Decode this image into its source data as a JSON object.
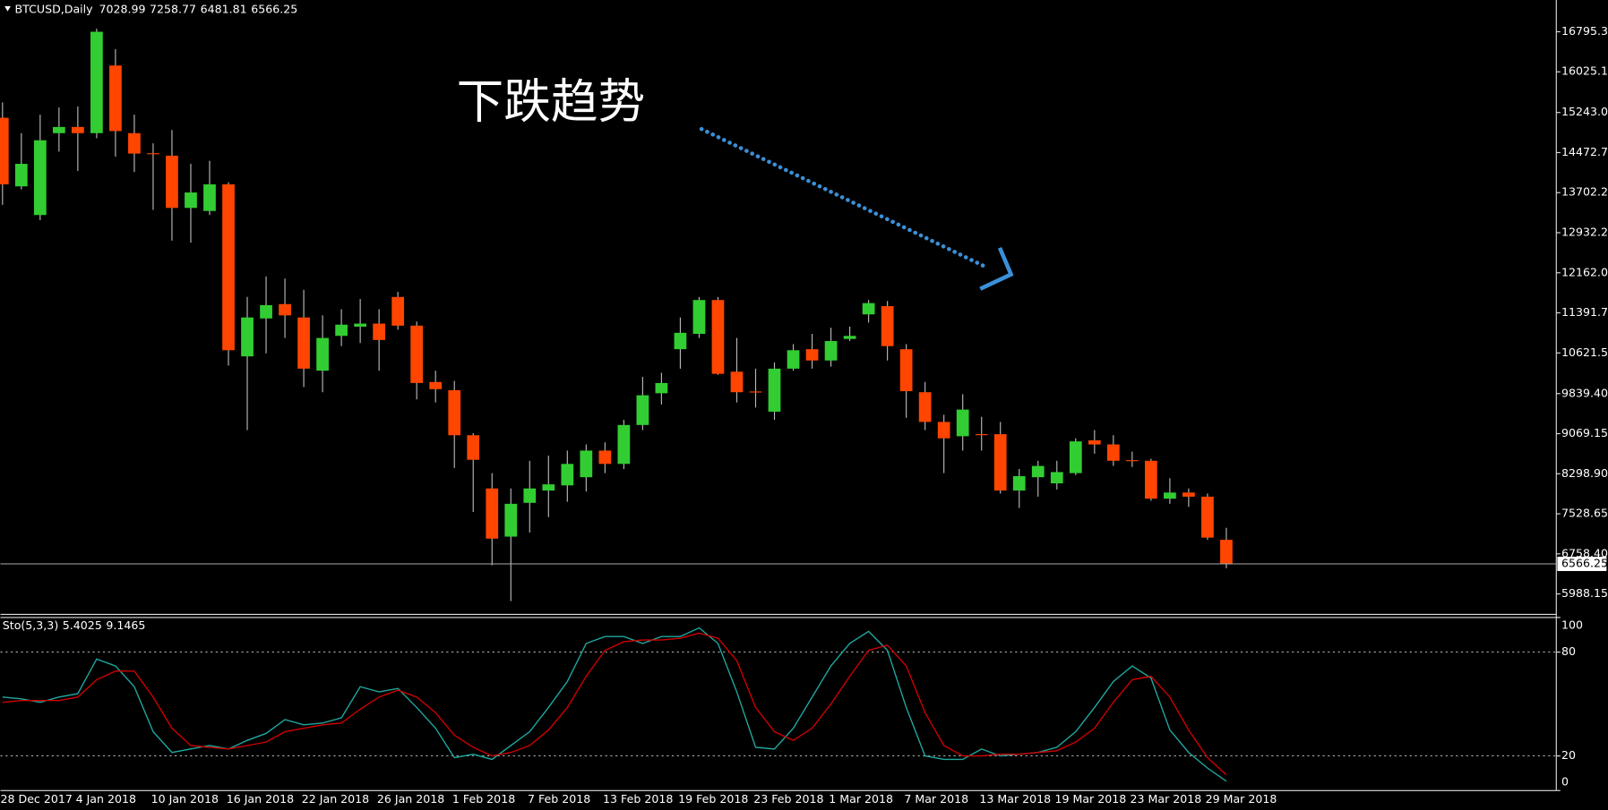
{
  "chart_data": [
    {
      "type": "candlestick",
      "title": "BTCUSD,Daily",
      "annotation": "下跌趋势",
      "categories": [
        "28 Dec 2017",
        null,
        null,
        null,
        "4 Jan 2018",
        null,
        null,
        null,
        "10 Jan 2018",
        null,
        null,
        null,
        "16 Jan 2018",
        null,
        null,
        null,
        "22 Jan 2018",
        null,
        null,
        null,
        "26 Jan 2018",
        null,
        null,
        null,
        "1 Feb 2018",
        null,
        null,
        null,
        "7 Feb 2018",
        null,
        null,
        null,
        "13 Feb 2018",
        null,
        null,
        null,
        "19 Feb 2018",
        null,
        null,
        null,
        "23 Feb 2018",
        null,
        null,
        null,
        "1 Mar 2018",
        null,
        null,
        null,
        "7 Mar 2018",
        null,
        null,
        null,
        "13 Mar 2018",
        null,
        null,
        null,
        "19 Mar 2018",
        null,
        null,
        null,
        "23 Mar 2018",
        null,
        null,
        null,
        "29 Mar 2018",
        null
      ],
      "open": [
        15142,
        13823,
        13272,
        14846,
        14965,
        14846,
        16146,
        14846,
        14460,
        14413,
        13409,
        13350,
        13862,
        10555,
        11284,
        11560,
        11303,
        10280,
        10949,
        11126,
        11185,
        11697,
        11146,
        10063,
        9905,
        9039,
        8016,
        7090,
        7740,
        7976,
        8075,
        8232,
        8744,
        8488,
        9236,
        9846,
        10693,
        10988,
        11638,
        10260,
        9880,
        9492,
        10319,
        10693,
        10476,
        10890,
        11362,
        11520,
        10693,
        9866,
        9295,
        9020,
        9060,
        9059,
        7976,
        8232,
        8114,
        8311,
        8941,
        8862,
        8560,
        8548,
        7819,
        7937,
        7858,
        7028.99
      ],
      "high": [
        15437,
        14846,
        15201,
        15339,
        15358,
        16854,
        16461,
        15201,
        14650,
        14906,
        14256,
        14315,
        13902,
        11697,
        12091,
        12051,
        11835,
        11343,
        11461,
        11657,
        11461,
        11795,
        11225,
        10280,
        10083,
        9079,
        8311,
        8016,
        8548,
        8646,
        8744,
        8862,
        8902,
        9335,
        10161,
        10240,
        11303,
        11697,
        11697,
        10909,
        10319,
        10437,
        10791,
        10988,
        11106,
        11126,
        11638,
        11618,
        10791,
        10063,
        9433,
        9827,
        9394,
        9295,
        8390,
        8548,
        8548,
        8980,
        9138,
        9039,
        8724,
        8587,
        8213,
        8016,
        7918,
        7258.77
      ],
      "low": [
        13469,
        13764,
        13173,
        14492,
        14118,
        14748,
        14394,
        14098,
        13370,
        12780,
        12740,
        13272,
        10378,
        9138,
        10614,
        10909,
        9965,
        9866,
        10752,
        10811,
        10280,
        11067,
        9728,
        9669,
        8409,
        7563,
        6539,
        5850,
        7169,
        7465,
        7760,
        7957,
        8311,
        8390,
        9138,
        9630,
        10319,
        10909,
        10201,
        9669,
        9571,
        9335,
        10280,
        10319,
        10358,
        10850,
        11205,
        10476,
        9374,
        9138,
        8311,
        8744,
        8744,
        7918,
        7642,
        7858,
        7996,
        8272,
        8685,
        8449,
        8429,
        7780,
        7721,
        7662,
        7031,
        6481.81
      ],
      "close": [
        13862,
        14256,
        14709,
        14965,
        14846,
        16795,
        14886,
        14453,
        14450,
        13409,
        13705,
        13862,
        10673,
        11303,
        11540,
        11343,
        10319,
        10909,
        11165,
        11185,
        10870,
        11146,
        10043,
        9925,
        9039,
        8567,
        7051,
        7721,
        8016,
        8095,
        8488,
        8744,
        8488,
        9236,
        9807,
        10043,
        11008,
        11638,
        10220,
        9866,
        9870,
        10319,
        10673,
        10476,
        10850,
        10949,
        11579,
        10752,
        9886,
        9295,
        8980,
        9532,
        9050,
        7976,
        8252,
        8449,
        8331,
        8921,
        8862,
        8548,
        8548,
        7819,
        7937,
        7858,
        7071,
        6566.25
      ],
      "up_color": "#32cd32",
      "down_color": "#ff4500",
      "wick_color": "#b8b8b8",
      "ylim": [
        5594.6,
        17405.6
      ],
      "yticks": [
        16795.35,
        {
          "value": 16025.1,
          "label": "16025.10"
        },
        {
          "value": 15243,
          "label": "15243.00"
        },
        14472.75,
        13702.25,
        12932.25,
        {
          "value": 12162,
          "label": "12162.00"
        },
        11391.75,
        {
          "value": 10621.5,
          "label": "10621.50"
        },
        {
          "value": 9839.4,
          "label": "9839.40"
        },
        9069.15,
        {
          "value": 8298.9,
          "label": "8298.90"
        },
        7528.65,
        {
          "value": 6758.4,
          "label": "6758.40"
        },
        5988.15
      ]
    },
    {
      "type": "line",
      "title": "Sto(5,3,3)",
      "series": [
        {
          "color": "#20a8a0",
          "values": [
            54,
            53,
            51,
            54,
            56,
            76,
            72,
            60,
            34,
            22,
            24,
            26,
            24,
            29,
            33,
            41,
            38,
            39,
            42,
            60,
            57,
            59,
            48,
            36,
            19,
            21,
            18,
            26,
            34,
            48,
            63,
            85,
            89,
            89,
            85,
            89,
            89,
            94,
            85,
            57,
            25,
            24,
            36,
            54,
            72,
            85,
            92,
            81,
            48,
            20,
            18,
            18,
            24,
            20,
            21,
            22,
            25,
            34,
            48,
            63,
            72,
            65,
            35,
            22,
            13,
            5.4025
          ]
        },
        {
          "color": "#d00000",
          "values": [
            51,
            52,
            52,
            52,
            54,
            64,
            69,
            69,
            54,
            36,
            26,
            25,
            24,
            26,
            28,
            34,
            36,
            38,
            39,
            47,
            54,
            58,
            54,
            45,
            32,
            25,
            20,
            22,
            26,
            35,
            48,
            66,
            81,
            86,
            87,
            87,
            88,
            91,
            88,
            75,
            48,
            34,
            29,
            36,
            50,
            66,
            81,
            84,
            72,
            45,
            26,
            20,
            20,
            21,
            21,
            22,
            23,
            28,
            36,
            51,
            64,
            66,
            54,
            35,
            19,
            9.1465
          ]
        }
      ],
      "ylim": [
        0,
        100
      ],
      "yticks": [
        0,
        20,
        80,
        100
      ]
    }
  ]
}
